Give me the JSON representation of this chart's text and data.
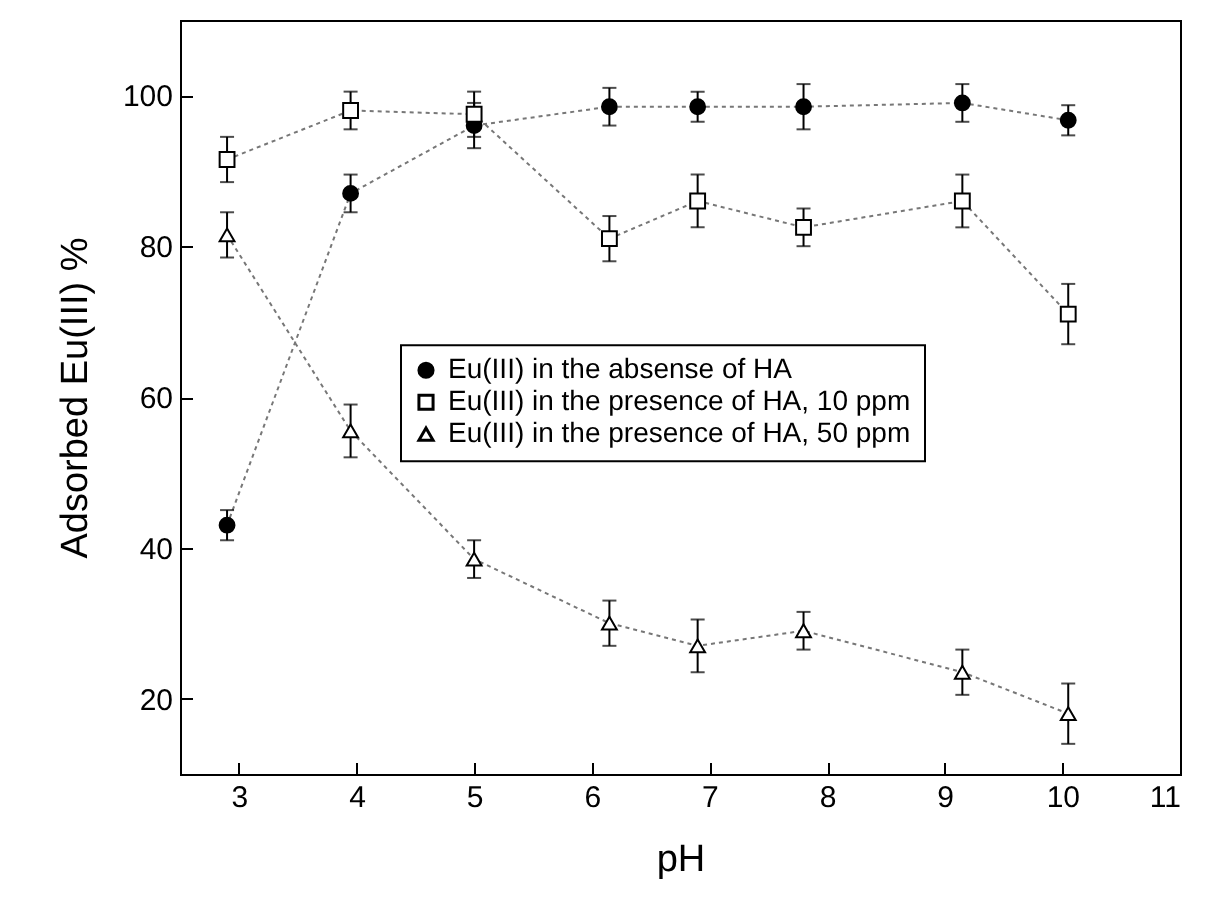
{
  "chart_data": {
    "type": "line",
    "xlabel": "pH",
    "ylabel": "Adsorbed Eu(III) %",
    "x": [
      2.9,
      3.95,
      5.0,
      6.15,
      6.9,
      7.8,
      9.15,
      10.05
    ],
    "xlim": [
      2.5,
      11
    ],
    "xticks": [
      3,
      4,
      5,
      6,
      7,
      8,
      9,
      10,
      11
    ],
    "ylim": [
      10,
      110
    ],
    "yticks": [
      20,
      40,
      60,
      80,
      100
    ],
    "legend": "right",
    "line_style": "dotted",
    "grid": false,
    "series": [
      {
        "name": "Eu(III) in the absense of HA",
        "color": "#000000",
        "marker": "circle",
        "values": [
          43,
          87,
          96,
          98.5,
          98.5,
          98.5,
          99,
          96.7
        ],
        "errors": [
          2,
          2.5,
          3,
          2.5,
          2,
          3,
          2.5,
          2
        ]
      },
      {
        "name": "Eu(III) in the presence of HA, 10 ppm",
        "color": "#000000",
        "marker": "square",
        "values": [
          91.5,
          98,
          97.5,
          81,
          86,
          82.5,
          86,
          71
        ],
        "errors": [
          3,
          2.5,
          3,
          3,
          3.5,
          2.5,
          3.5,
          4
        ]
      },
      {
        "name": "Eu(III) in the presence of HA, 50 ppm",
        "color": "#000000",
        "marker": "triangle",
        "values": [
          81.5,
          55.5,
          38.5,
          30,
          27,
          29,
          23.5,
          18
        ],
        "errors": [
          3,
          3.5,
          2.5,
          3,
          3.5,
          2.5,
          3,
          4
        ]
      }
    ]
  }
}
